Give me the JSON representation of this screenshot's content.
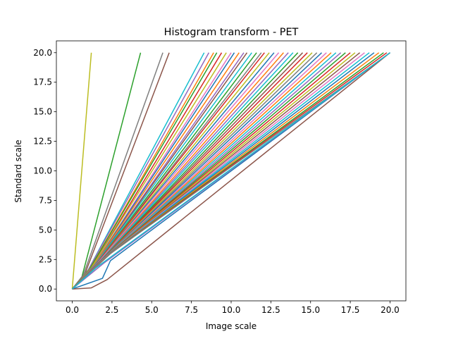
{
  "chart_data": {
    "type": "line",
    "title": "Histogram transform - PET",
    "xlabel": "Image scale",
    "ylabel": "Standard scale",
    "xlim": [
      -1.0,
      21.0
    ],
    "ylim": [
      -1.0,
      21.0
    ],
    "x_ticks": [
      0.0,
      2.5,
      5.0,
      7.5,
      10.0,
      12.5,
      15.0,
      17.5,
      20.0
    ],
    "y_ticks": [
      0.0,
      2.5,
      5.0,
      7.5,
      10.0,
      12.5,
      15.0,
      17.5,
      20.0
    ],
    "x_tick_labels": [
      "0.0",
      "2.5",
      "5.0",
      "7.5",
      "10.0",
      "12.5",
      "15.0",
      "17.5",
      "20.0"
    ],
    "y_tick_labels": [
      "0.0",
      "2.5",
      "5.0",
      "7.5",
      "10.0",
      "12.5",
      "15.0",
      "17.5",
      "20.0"
    ],
    "grid": false,
    "legend": "none",
    "color_cycle": [
      "#1f77b4",
      "#ff7f0e",
      "#2ca02c",
      "#d62728",
      "#9467bd",
      "#8c564b",
      "#e377c2",
      "#7f7f7f",
      "#bcbd22",
      "#17becf"
    ],
    "series": [
      {
        "x": [
          0.0,
          1.2
        ],
        "y": [
          0.0,
          20.0
        ],
        "color": "#bcbd22"
      },
      {
        "x": [
          0.0,
          0.6,
          4.3
        ],
        "y": [
          0.0,
          1.0,
          20.0
        ],
        "color": "#2ca02c"
      },
      {
        "x": [
          0.0,
          0.7,
          5.7
        ],
        "y": [
          0.0,
          1.2,
          20.0
        ],
        "color": "#7f7f7f"
      },
      {
        "x": [
          0.0,
          0.8,
          6.1
        ],
        "y": [
          0.0,
          1.3,
          20.0
        ],
        "color": "#8c564b"
      },
      {
        "x": [
          0.0,
          1.0,
          8.3
        ],
        "y": [
          0.0,
          1.6,
          20.0
        ],
        "color": "#17becf"
      },
      {
        "x": [
          0.0,
          1.0,
          8.6
        ],
        "y": [
          0.0,
          1.6,
          20.0
        ],
        "color": "#9467bd"
      },
      {
        "x": [
          0.0,
          1.1,
          8.9
        ],
        "y": [
          0.0,
          1.7,
          20.0
        ],
        "color": "#ff7f0e"
      },
      {
        "x": [
          0.0,
          1.1,
          9.1
        ],
        "y": [
          0.0,
          1.7,
          20.0
        ],
        "color": "#2ca02c"
      },
      {
        "x": [
          0.0,
          1.2,
          9.4
        ],
        "y": [
          0.0,
          1.8,
          20.0
        ],
        "color": "#d62728"
      },
      {
        "x": [
          0.0,
          1.2,
          9.7
        ],
        "y": [
          0.0,
          1.8,
          20.0
        ],
        "color": "#bcbd22"
      },
      {
        "x": [
          0.0,
          1.3,
          10.0
        ],
        "y": [
          0.0,
          1.9,
          20.0
        ],
        "color": "#e377c2"
      },
      {
        "x": [
          0.0,
          1.3,
          10.2
        ],
        "y": [
          0.0,
          1.9,
          20.0
        ],
        "color": "#1f77b4"
      },
      {
        "x": [
          0.0,
          1.3,
          10.5
        ],
        "y": [
          0.0,
          1.9,
          20.0
        ],
        "color": "#ff7f0e"
      },
      {
        "x": [
          0.0,
          1.4,
          10.8
        ],
        "y": [
          0.0,
          2.0,
          20.0
        ],
        "color": "#9467bd"
      },
      {
        "x": [
          0.0,
          1.4,
          11.0
        ],
        "y": [
          0.0,
          2.0,
          20.0
        ],
        "color": "#8c564b"
      },
      {
        "x": [
          0.0,
          1.4,
          11.3
        ],
        "y": [
          0.0,
          2.0,
          20.0
        ],
        "color": "#17becf"
      },
      {
        "x": [
          0.0,
          1.5,
          11.6
        ],
        "y": [
          0.0,
          2.1,
          20.0
        ],
        "color": "#2ca02c"
      },
      {
        "x": [
          0.0,
          1.5,
          11.9
        ],
        "y": [
          0.0,
          2.1,
          20.0
        ],
        "color": "#7f7f7f"
      },
      {
        "x": [
          0.0,
          1.5,
          12.1
        ],
        "y": [
          0.0,
          2.1,
          20.0
        ],
        "color": "#d62728"
      },
      {
        "x": [
          0.0,
          1.6,
          12.4
        ],
        "y": [
          0.0,
          2.2,
          20.0
        ],
        "color": "#bcbd22"
      },
      {
        "x": [
          0.0,
          1.6,
          12.7
        ],
        "y": [
          0.0,
          2.2,
          20.0
        ],
        "color": "#1f77b4"
      },
      {
        "x": [
          0.0,
          1.6,
          13.0
        ],
        "y": [
          0.0,
          2.2,
          20.0
        ],
        "color": "#e377c2"
      },
      {
        "x": [
          0.0,
          1.7,
          13.3
        ],
        "y": [
          0.0,
          2.3,
          20.0
        ],
        "color": "#ff7f0e"
      },
      {
        "x": [
          0.0,
          1.7,
          13.6
        ],
        "y": [
          0.0,
          2.3,
          20.0
        ],
        "color": "#9467bd"
      },
      {
        "x": [
          0.0,
          1.7,
          13.9
        ],
        "y": [
          0.0,
          2.3,
          20.0
        ],
        "color": "#17becf"
      },
      {
        "x": [
          0.0,
          1.8,
          14.2
        ],
        "y": [
          0.0,
          2.4,
          20.0
        ],
        "color": "#2ca02c"
      },
      {
        "x": [
          0.0,
          1.8,
          14.5
        ],
        "y": [
          0.0,
          2.4,
          20.0
        ],
        "color": "#8c564b"
      },
      {
        "x": [
          0.0,
          1.8,
          14.8
        ],
        "y": [
          0.0,
          2.4,
          20.0
        ],
        "color": "#d62728"
      },
      {
        "x": [
          0.0,
          1.9,
          15.1
        ],
        "y": [
          0.0,
          2.5,
          20.0
        ],
        "color": "#bcbd22"
      },
      {
        "x": [
          0.0,
          1.9,
          15.4
        ],
        "y": [
          0.0,
          2.5,
          20.0
        ],
        "color": "#7f7f7f"
      },
      {
        "x": [
          0.0,
          1.9,
          15.7
        ],
        "y": [
          0.0,
          2.5,
          20.0
        ],
        "color": "#1f77b4"
      },
      {
        "x": [
          0.0,
          2.0,
          16.0
        ],
        "y": [
          0.0,
          2.6,
          20.0
        ],
        "color": "#e377c2"
      },
      {
        "x": [
          0.0,
          2.0,
          16.3
        ],
        "y": [
          0.0,
          2.6,
          20.0
        ],
        "color": "#ff7f0e"
      },
      {
        "x": [
          0.0,
          2.0,
          16.6
        ],
        "y": [
          0.0,
          2.6,
          20.0
        ],
        "color": "#17becf"
      },
      {
        "x": [
          0.0,
          2.1,
          16.9
        ],
        "y": [
          0.0,
          2.7,
          20.0
        ],
        "color": "#9467bd"
      },
      {
        "x": [
          0.0,
          2.1,
          17.2
        ],
        "y": [
          0.0,
          2.7,
          20.0
        ],
        "color": "#2ca02c"
      },
      {
        "x": [
          0.0,
          2.1,
          17.5
        ],
        "y": [
          0.0,
          2.7,
          20.0
        ],
        "color": "#d62728"
      },
      {
        "x": [
          0.0,
          2.2,
          17.8
        ],
        "y": [
          0.0,
          2.8,
          20.0
        ],
        "color": "#bcbd22"
      },
      {
        "x": [
          0.0,
          2.2,
          18.1
        ],
        "y": [
          0.0,
          2.8,
          20.0
        ],
        "color": "#8c564b"
      },
      {
        "x": [
          0.0,
          2.2,
          18.4
        ],
        "y": [
          0.0,
          2.8,
          20.0
        ],
        "color": "#e377c2"
      },
      {
        "x": [
          0.0,
          2.3,
          18.7
        ],
        "y": [
          0.0,
          2.9,
          20.0
        ],
        "color": "#17becf"
      },
      {
        "x": [
          0.0,
          2.3,
          19.0
        ],
        "y": [
          0.0,
          2.9,
          20.0
        ],
        "color": "#1f77b4"
      },
      {
        "x": [
          0.0,
          2.3,
          19.3
        ],
        "y": [
          0.0,
          2.9,
          20.0
        ],
        "color": "#ff7f0e"
      },
      {
        "x": [
          0.0,
          2.4,
          19.6
        ],
        "y": [
          0.0,
          3.0,
          20.0
        ],
        "color": "#2ca02c"
      },
      {
        "x": [
          0.0,
          2.4,
          19.8
        ],
        "y": [
          0.0,
          3.0,
          20.0
        ],
        "color": "#d62728"
      },
      {
        "x": [
          0.0,
          2.4,
          20.0
        ],
        "y": [
          0.0,
          3.0,
          20.0
        ],
        "color": "#7f7f7f"
      },
      {
        "x": [
          0.0,
          1.9,
          2.4,
          20.0
        ],
        "y": [
          0.0,
          0.9,
          2.4,
          20.0
        ],
        "color": "#1f77b4"
      },
      {
        "x": [
          0.0,
          1.2,
          2.2,
          20.0
        ],
        "y": [
          0.0,
          0.1,
          0.8,
          20.0
        ],
        "color": "#8c564b"
      },
      {
        "x": [
          0.0,
          2.0,
          20.0
        ],
        "y": [
          0.0,
          2.2,
          20.0
        ],
        "color": "#9467bd"
      },
      {
        "x": [
          0.0,
          1.5,
          20.0
        ],
        "y": [
          0.0,
          1.8,
          20.0
        ],
        "color": "#17becf"
      }
    ]
  }
}
